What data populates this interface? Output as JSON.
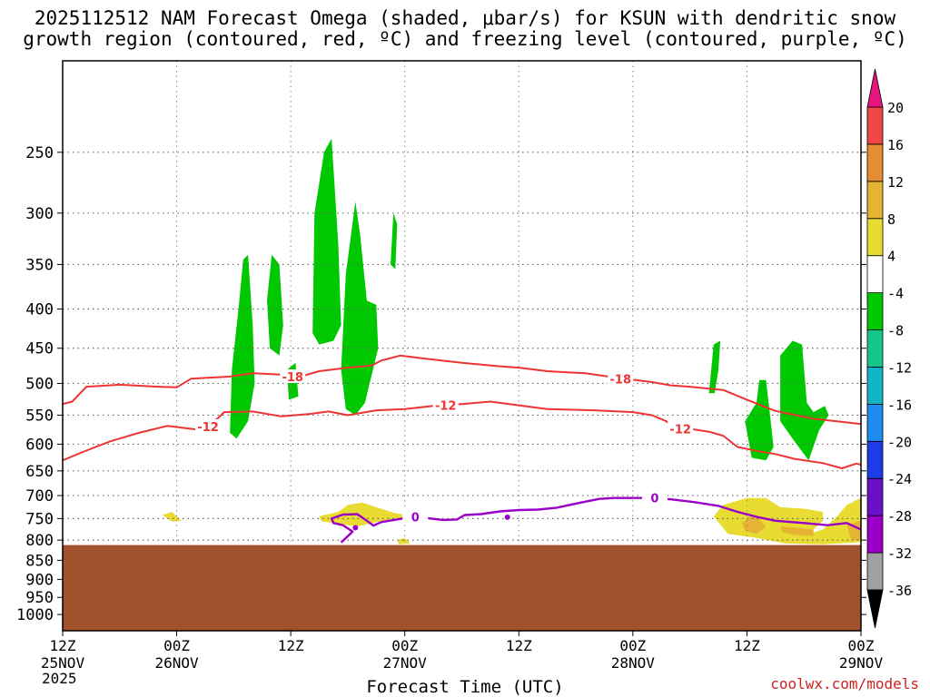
{
  "title_line1": "2025112512 NAM Forecast Omega (shaded, μbar/s) for KSUN with dendritic snow",
  "title_line2": "growth region (contoured, red, ºC) and freezing level (contoured, purple, ºC)",
  "credit": "coolwx.com/models",
  "chart_data": {
    "type": "heatmap",
    "xlabel": "Forecast Time (UTC)",
    "x_ticks": [
      {
        "hour": 0,
        "label": "12Z",
        "date": "25NOV"
      },
      {
        "hour": 12,
        "label": "00Z",
        "date": "26NOV"
      },
      {
        "hour": 24,
        "label": "12Z",
        "date": ""
      },
      {
        "hour": 36,
        "label": "00Z",
        "date": "27NOV"
      },
      {
        "hour": 48,
        "label": "12Z",
        "date": ""
      },
      {
        "hour": 60,
        "label": "00Z",
        "date": "28NOV"
      },
      {
        "hour": 72,
        "label": "12Z",
        "date": ""
      },
      {
        "hour": 84,
        "label": "00Z",
        "date": "29NOV"
      }
    ],
    "year_label": "2025",
    "xlim_hours": [
      0,
      84
    ],
    "ylabel": "",
    "y_scale": "log (pressure, hPa, inverted)",
    "ylim_hpa": [
      1050,
      190
    ],
    "y_ticks": [
      250,
      300,
      350,
      400,
      450,
      500,
      550,
      600,
      650,
      700,
      750,
      800,
      850,
      900,
      950,
      1000
    ],
    "grid": true,
    "terrain_top_hpa": 812,
    "colorbar": {
      "colors": [
        "#a0a0a0",
        "#9a00c8",
        "#6a10c8",
        "#1e3ce6",
        "#1e8cf0",
        "#14b4c8",
        "#14c88c",
        "#00c800",
        "#ffffff",
        "#e8dc32",
        "#e6b432",
        "#e68c32",
        "#f04646",
        "#e6147d"
      ],
      "labels": [
        "-36",
        "-32",
        "-28",
        "-24",
        "-20",
        "-16",
        "-12",
        "-8",
        "-4",
        "4",
        "8",
        "12",
        "16",
        "20"
      ],
      "extend_low_color": "#000000",
      "extend_high_color": "#e6147d"
    },
    "omega_regions": [
      {
        "value": -6,
        "color": "#00c800",
        "points": [
          [
            17.6,
            580
          ],
          [
            17.8,
            480
          ],
          [
            18.5,
            400
          ],
          [
            19,
            345
          ],
          [
            19.5,
            340
          ],
          [
            20,
            420
          ],
          [
            20.2,
            500
          ],
          [
            19.5,
            560
          ],
          [
            18.3,
            590
          ]
        ]
      },
      {
        "value": -6,
        "color": "#00c800",
        "points": [
          [
            21.8,
            450
          ],
          [
            21.5,
            390
          ],
          [
            22,
            340
          ],
          [
            22.8,
            350
          ],
          [
            23.2,
            420
          ],
          [
            22.8,
            460
          ]
        ]
      },
      {
        "value": -6,
        "color": "#00c800",
        "points": [
          [
            23.6,
            480
          ],
          [
            24.5,
            470
          ],
          [
            24.8,
            520
          ],
          [
            23.8,
            525
          ]
        ]
      },
      {
        "value": -6,
        "color": "#00c800",
        "points": [
          [
            26.3,
            430
          ],
          [
            26.5,
            300
          ],
          [
            27.5,
            250
          ],
          [
            28.3,
            240
          ],
          [
            29,
            330
          ],
          [
            29.3,
            420
          ],
          [
            28.5,
            440
          ],
          [
            27,
            445
          ]
        ]
      },
      {
        "value": -6,
        "color": "#00c800",
        "points": [
          [
            29.3,
            480
          ],
          [
            29.8,
            360
          ],
          [
            30.8,
            290
          ],
          [
            31.3,
            320
          ],
          [
            32,
            390
          ],
          [
            33,
            395
          ],
          [
            33.2,
            450
          ],
          [
            31.8,
            530
          ],
          [
            30.8,
            550
          ],
          [
            29.8,
            540
          ]
        ]
      },
      {
        "value": -6,
        "color": "#00c800",
        "points": [
          [
            34.5,
            350
          ],
          [
            34.8,
            300
          ],
          [
            35.2,
            310
          ],
          [
            35,
            355
          ]
        ]
      },
      {
        "value": -6,
        "color": "#00c800",
        "points": [
          [
            68,
            515
          ],
          [
            68.5,
            445
          ],
          [
            69.2,
            440
          ],
          [
            69,
            480
          ],
          [
            68.6,
            515
          ]
        ]
      },
      {
        "value": -6,
        "color": "#00c800",
        "points": [
          [
            71.8,
            560
          ],
          [
            73,
            530
          ],
          [
            73.3,
            495
          ],
          [
            74,
            495
          ],
          [
            74.5,
            560
          ],
          [
            74.8,
            605
          ],
          [
            74,
            630
          ],
          [
            72.5,
            625
          ]
        ]
      },
      {
        "value": -6,
        "color": "#00c800",
        "points": [
          [
            75.5,
            560
          ],
          [
            75.5,
            460
          ],
          [
            76.8,
            440
          ],
          [
            77.8,
            445
          ],
          [
            78.3,
            530
          ],
          [
            79,
            545
          ],
          [
            80.2,
            535
          ],
          [
            80.6,
            550
          ],
          [
            79.6,
            575
          ],
          [
            78.5,
            630
          ],
          [
            77,
            595
          ]
        ]
      },
      {
        "value": 6,
        "color": "#e8dc32",
        "points": [
          [
            10.5,
            742
          ],
          [
            11.5,
            735
          ],
          [
            12.5,
            755
          ],
          [
            11.5,
            757
          ]
        ]
      },
      {
        "value": 6,
        "color": "#e8dc32",
        "points": [
          [
            27,
            745
          ],
          [
            29,
            735
          ],
          [
            30,
            720
          ],
          [
            31.5,
            715
          ],
          [
            33,
            725
          ],
          [
            35,
            738
          ],
          [
            37,
            745
          ],
          [
            35,
            750
          ],
          [
            33,
            758
          ],
          [
            31,
            768
          ],
          [
            29,
            762
          ],
          [
            27.2,
            756
          ]
        ]
      },
      {
        "value": 6,
        "color": "#e8dc32",
        "points": [
          [
            35.2,
            800
          ],
          [
            36,
            795
          ],
          [
            36.6,
            808
          ],
          [
            35.4,
            810
          ]
        ]
      },
      {
        "value": 6,
        "color": "#e8dc32",
        "points": [
          [
            68.5,
            745
          ],
          [
            69.5,
            720
          ],
          [
            72,
            705
          ],
          [
            74,
            705
          ],
          [
            75.5,
            725
          ],
          [
            78,
            728
          ],
          [
            80,
            735
          ],
          [
            80,
            755
          ],
          [
            78.5,
            785
          ],
          [
            80,
            775
          ],
          [
            81.5,
            745
          ],
          [
            82.5,
            720
          ],
          [
            84,
            705
          ],
          [
            84,
            805
          ],
          [
            80,
            810
          ],
          [
            76,
            808
          ],
          [
            73,
            795
          ],
          [
            70,
            785
          ]
        ]
      },
      {
        "value": 10,
        "color": "#e6b432",
        "points": [
          [
            71.5,
            760
          ],
          [
            72.5,
            742
          ],
          [
            73.3,
            750
          ],
          [
            74,
            768
          ],
          [
            73,
            785
          ],
          [
            71.8,
            778
          ]
        ]
      },
      {
        "value": 10,
        "color": "#e6b432",
        "points": [
          [
            75.5,
            768
          ],
          [
            77,
            770
          ],
          [
            79,
            775
          ],
          [
            79,
            790
          ],
          [
            77,
            788
          ],
          [
            75.8,
            782
          ]
        ]
      },
      {
        "value": 10,
        "color": "#e6b432",
        "points": [
          [
            82.5,
            765
          ],
          [
            84,
            755
          ],
          [
            84,
            800
          ],
          [
            83,
            800
          ]
        ]
      }
    ],
    "temperature_contours": [
      {
        "level": -18,
        "label": "-18",
        "points": [
          [
            0,
            532
          ],
          [
            1,
            528
          ],
          [
            2.5,
            505
          ],
          [
            6,
            502
          ],
          [
            10,
            505
          ],
          [
            12,
            506
          ],
          [
            13.5,
            493
          ],
          [
            17.5,
            490
          ],
          [
            20,
            485
          ],
          [
            23,
            487
          ],
          [
            25,
            490
          ],
          [
            27,
            482
          ],
          [
            30,
            477
          ],
          [
            32.5,
            474
          ],
          [
            33.5,
            467
          ],
          [
            35.5,
            460
          ],
          [
            38,
            464
          ],
          [
            42,
            470
          ],
          [
            46,
            475
          ],
          [
            48,
            477
          ],
          [
            51,
            482
          ],
          [
            55,
            485
          ],
          [
            58,
            491
          ],
          [
            62,
            498
          ],
          [
            64,
            503
          ],
          [
            66,
            505
          ],
          [
            69.5,
            510
          ],
          [
            72,
            525
          ],
          [
            75,
            543
          ],
          [
            79,
            556
          ],
          [
            83,
            563
          ],
          [
            84,
            565
          ]
        ]
      },
      {
        "level": -12,
        "label": "-12",
        "points": [
          [
            0,
            630
          ],
          [
            2,
            615
          ],
          [
            5,
            595
          ],
          [
            8,
            580
          ],
          [
            11,
            568
          ],
          [
            14.5,
            575
          ],
          [
            16,
            560
          ],
          [
            17,
            545
          ],
          [
            20,
            544
          ],
          [
            23,
            552
          ],
          [
            26,
            548
          ],
          [
            28,
            544
          ],
          [
            30,
            550
          ],
          [
            33,
            542
          ],
          [
            36,
            540
          ],
          [
            39,
            535
          ],
          [
            42,
            532
          ],
          [
            45,
            528
          ],
          [
            47,
            532
          ],
          [
            51,
            540
          ],
          [
            56,
            542
          ],
          [
            60,
            545
          ],
          [
            62,
            550
          ],
          [
            63.5,
            560
          ],
          [
            64.5,
            572
          ],
          [
            66,
            573
          ],
          [
            68,
            578
          ],
          [
            69.5,
            585
          ],
          [
            71,
            605
          ],
          [
            73,
            612
          ],
          [
            75,
            618
          ],
          [
            77,
            627
          ],
          [
            80,
            635
          ],
          [
            82,
            645
          ],
          [
            83.5,
            636
          ],
          [
            84,
            638
          ]
        ]
      }
    ],
    "freezing_contour": {
      "level": 0,
      "label": "0",
      "points": [
        [
          29.3,
          806
        ],
        [
          30.5,
          780
        ],
        [
          29.5,
          765
        ],
        [
          28.5,
          760
        ],
        [
          28.3,
          750
        ],
        [
          29.5,
          741
        ],
        [
          31,
          740
        ],
        [
          32,
          755
        ],
        [
          32.7,
          766
        ],
        [
          33.5,
          758
        ],
        [
          36,
          749
        ],
        [
          38,
          748
        ],
        [
          40,
          753
        ],
        [
          41.5,
          752
        ],
        [
          42.3,
          742
        ],
        [
          44,
          740
        ],
        [
          46,
          734
        ],
        [
          48,
          731
        ],
        [
          50,
          730
        ],
        [
          52,
          726
        ],
        [
          54.5,
          715
        ],
        [
          56.5,
          707
        ],
        [
          58,
          705
        ],
        [
          61,
          705
        ],
        [
          64,
          708
        ],
        [
          66.5,
          714
        ],
        [
          69,
          722
        ],
        [
          71,
          735
        ],
        [
          73,
          746
        ],
        [
          75,
          755
        ],
        [
          78,
          760
        ],
        [
          80.5,
          765
        ],
        [
          82.5,
          760
        ],
        [
          84,
          775
        ]
      ]
    },
    "freezing_dots": [
      [
        30.8,
        771
      ],
      [
        46.8,
        747
      ]
    ]
  }
}
